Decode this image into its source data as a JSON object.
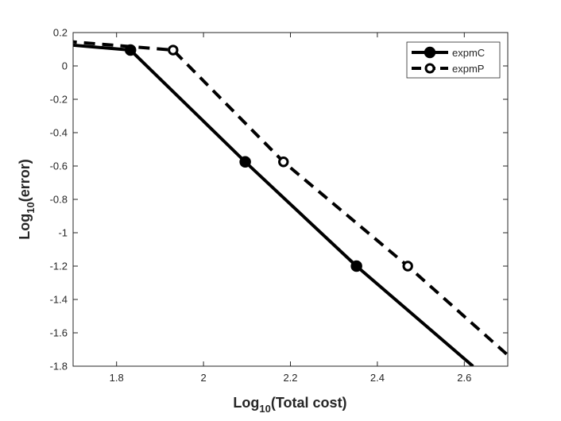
{
  "chart_data": {
    "type": "line",
    "xlabel": "Log10(Total cost)",
    "xlabel_parts": {
      "prefix": "Log",
      "sub": "10",
      "suffix": "(Total cost)"
    },
    "ylabel": "Log10(error)",
    "ylabel_parts": {
      "prefix": "Log",
      "sub": "10",
      "suffix": "(error)"
    },
    "xlim": [
      1.7,
      2.7
    ],
    "ylim": [
      -1.8,
      0.2
    ],
    "xticks": [
      1.8,
      2,
      2.2,
      2.4,
      2.6
    ],
    "xtick_labels": [
      "1.8",
      "2",
      "2.2",
      "2.4",
      "2.6"
    ],
    "yticks": [
      0.2,
      0,
      -0.2,
      -0.4,
      -0.6,
      -0.8,
      -1,
      -1.2,
      -1.4,
      -1.6,
      -1.8
    ],
    "ytick_labels": [
      "0.2",
      "0",
      "-0.2",
      "-0.4",
      "-0.6",
      "-0.8",
      "-1",
      "-1.2",
      "-1.4",
      "-1.6",
      "-1.8"
    ],
    "grid": false,
    "legend_position": "top-right",
    "series": [
      {
        "name": "expmC",
        "line_style": "solid",
        "marker": "filled-circle",
        "color": "#000000",
        "x": [
          1.683,
          1.832,
          2.096,
          2.352,
          2.62
        ],
        "y": [
          0.128,
          0.095,
          -0.575,
          -1.2,
          -1.8
        ],
        "marker_x": [
          1.832,
          2.096,
          2.352
        ],
        "marker_y": [
          0.095,
          -0.575,
          -1.2
        ]
      },
      {
        "name": "expmP",
        "line_style": "dashed",
        "marker": "open-circle",
        "color": "#000000",
        "x": [
          1.683,
          1.93,
          2.184,
          2.47,
          2.72
        ],
        "y": [
          0.148,
          0.095,
          -0.575,
          -1.2,
          -1.78
        ],
        "marker_x": [
          1.93,
          2.184,
          2.47
        ],
        "marker_y": [
          0.095,
          -0.575,
          -1.2
        ]
      }
    ]
  }
}
